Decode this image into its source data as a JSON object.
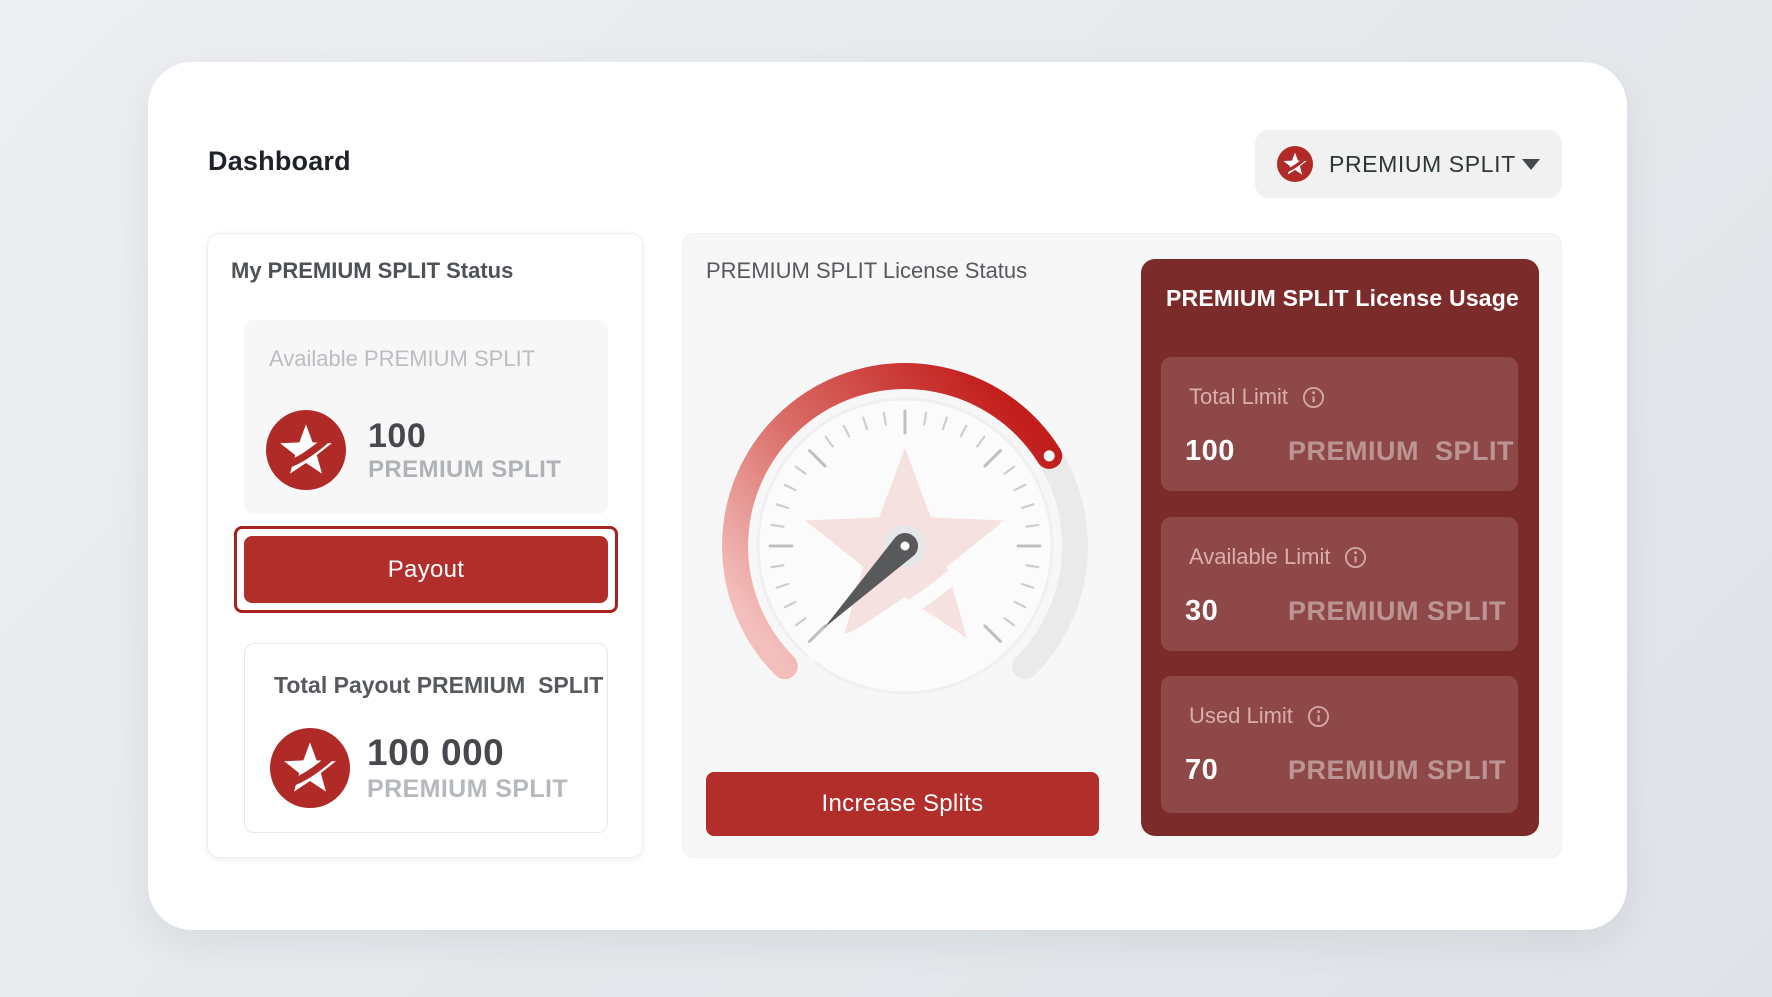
{
  "page": {
    "title": "Dashboard"
  },
  "account_switcher": {
    "label": "PREMIUM SPLIT"
  },
  "status_card": {
    "title": "My PREMIUM SPLIT Status",
    "available": {
      "label": "Available PREMIUM SPLIT",
      "value": "100",
      "unit": "PREMIUM SPLIT"
    },
    "payout_button_label": "Payout",
    "total_payout": {
      "label": "Total Payout PREMIUM  SPLIT",
      "value": "100 000",
      "unit": "PREMIUM SPLIT"
    }
  },
  "license_panel": {
    "title": "PREMIUM SPLIT License Status",
    "increase_button_label": "Increase Splits",
    "usage": {
      "title": "PREMIUM SPLIT License Usage",
      "items": [
        {
          "label": "Total Limit",
          "value": "100",
          "unit": "PREMIUM  SPLIT"
        },
        {
          "label": "Available Limit",
          "value": "30",
          "unit": "PREMIUM SPLIT"
        },
        {
          "label": "Used Limit",
          "value": "70",
          "unit": "PREMIUM SPLIT"
        }
      ]
    }
  },
  "chart_data": {
    "type": "gauge",
    "title": "PREMIUM SPLIT License Status",
    "value_used": 70,
    "value_available": 30,
    "value_total": 100,
    "fill_fraction": 0.7,
    "sweep_degrees": 270,
    "legend_position": "none"
  },
  "colors": {
    "brand_red": "#B22E2B",
    "badge_red": "#B02A28",
    "ring_red": "#A82220",
    "maroon": "#7B2B29",
    "gauge_red": "#C21E1C",
    "page_bg": "#E7EAED"
  }
}
